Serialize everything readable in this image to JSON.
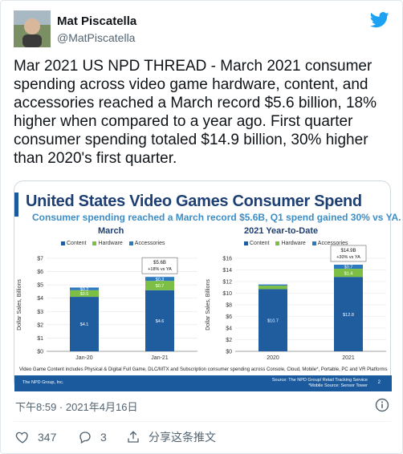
{
  "author": {
    "name": "Mat Piscatella",
    "handle": "@MatPiscatella"
  },
  "tweet": {
    "text": "Mar 2021 US NPD THREAD - March 2021 consumer spending across video game hardware, content, and accessories reached a March record $5.6 billion, 18% higher when compared to a year ago. First quarter consumer spending totaled $14.9 billion, 30% higher than 2020's first quarter.",
    "timestamp": "下午8:59 · 2021年4月16日"
  },
  "actions": {
    "likes": "347",
    "replies": "3",
    "share_label": "分享这条推文"
  },
  "media": {
    "title": "United States Video Games Consumer Spend",
    "subtitle": "Consumer spending reached a March record $5.6B, Q1 spend gained 30% vs YA.",
    "footnote": "Video Game Content includes Physical & Digital Full Game, DLC/MTX and Subscription consumer spending across Console, Cloud, Mobile*, Portable, PC and VR Platforms",
    "footer_left": "The NPD Group, Inc.",
    "footer_right_1": "Source: The NPD Group/ Retail Tracking Service",
    "footer_right_2": "*Mobile Source: Sensor Tower",
    "page_number": "2"
  },
  "colors": {
    "content": "#1f5d9e",
    "hardware": "#7dbf45",
    "accessories": "#2c79bf",
    "brand": "#1da1f2"
  },
  "chart_data": [
    {
      "type": "bar",
      "title": "March",
      "legend": [
        "Content",
        "Hardware",
        "Accessories"
      ],
      "ylabel": "Dollar Sales, Billions",
      "ylim": [
        0,
        7
      ],
      "yticks": [
        "$0",
        "$1",
        "$2",
        "$3",
        "$4",
        "$5",
        "$6",
        "$7"
      ],
      "categories": [
        "Jan-20",
        "Jan-21"
      ],
      "series": [
        {
          "name": "Content",
          "values": [
            4.1,
            4.6
          ],
          "labels": [
            "$4.1",
            "$4.6"
          ]
        },
        {
          "name": "Hardware",
          "values": [
            0.5,
            0.7
          ],
          "labels": [
            "$0.5",
            "$0.7"
          ]
        },
        {
          "name": "Accessories",
          "values": [
            0.2,
            0.3
          ],
          "labels": [
            "$0.2",
            "$0.3"
          ]
        }
      ],
      "callout": {
        "category": "Jan-21",
        "line1": "$5.6B",
        "line2": "+18% vs YA"
      }
    },
    {
      "type": "bar",
      "title": "2021 Year-to-Date",
      "legend": [
        "Content",
        "Hardware",
        "Accessories"
      ],
      "ylabel": "Dollar Sales, Billions",
      "ylim": [
        0,
        16
      ],
      "yticks": [
        "$0",
        "$2",
        "$4",
        "$6",
        "$8",
        "$10",
        "$12",
        "$14",
        "$16"
      ],
      "categories": [
        "2020",
        "2021"
      ],
      "series": [
        {
          "name": "Content",
          "values": [
            10.7,
            12.8
          ],
          "labels": [
            "$10.7",
            "$12.8"
          ]
        },
        {
          "name": "Hardware",
          "values": [
            0.6,
            1.4
          ],
          "labels": [
            "",
            "$1.4"
          ]
        },
        {
          "name": "Accessories",
          "values": [
            0.2,
            0.7
          ],
          "labels": [
            "",
            "$0.7"
          ]
        }
      ],
      "callout": {
        "category": "2021",
        "line1": "$14.9B",
        "line2": "+30% vs YA"
      }
    }
  ]
}
